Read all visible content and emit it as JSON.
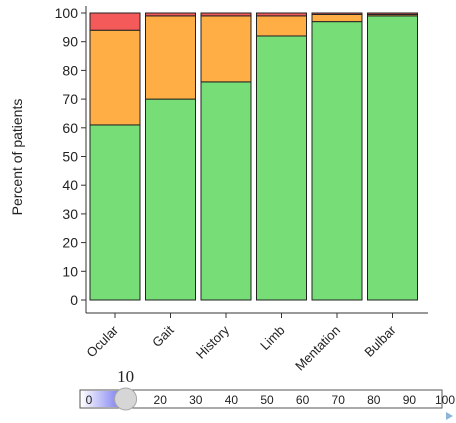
{
  "chart_data": {
    "type": "bar",
    "stacked": true,
    "categories": [
      "Ocular",
      "Gait",
      "History",
      "Limb",
      "Mentation",
      "Bulbar"
    ],
    "series": [
      {
        "color": "#77dd77",
        "values": [
          61,
          70,
          76,
          92,
          97,
          99
        ]
      },
      {
        "color": "#ffad45",
        "values": [
          33,
          29,
          23,
          7,
          2.5,
          0.5
        ]
      },
      {
        "color": "#f45a5a",
        "values": [
          6,
          1,
          1,
          1,
          0.5,
          0.5
        ]
      }
    ],
    "xlabel": "",
    "ylabel": "Percent of patients",
    "ylim": [
      0,
      100
    ],
    "yticks": [
      0,
      10,
      20,
      30,
      40,
      50,
      60,
      70,
      80,
      90,
      100
    ],
    "grid": false,
    "legend": "none"
  },
  "slider": {
    "value": 10,
    "value_label": "10",
    "tick_labels": [
      "0",
      "20",
      "30",
      "40",
      "50",
      "60",
      "70",
      "80",
      "90",
      "100"
    ],
    "tick_values": [
      0,
      20,
      30,
      40,
      50,
      60,
      70,
      80,
      90,
      100
    ],
    "min": 0,
    "max": 100,
    "fill_color": "#6e6ef0",
    "play_icon": "play-triangle-icon"
  }
}
